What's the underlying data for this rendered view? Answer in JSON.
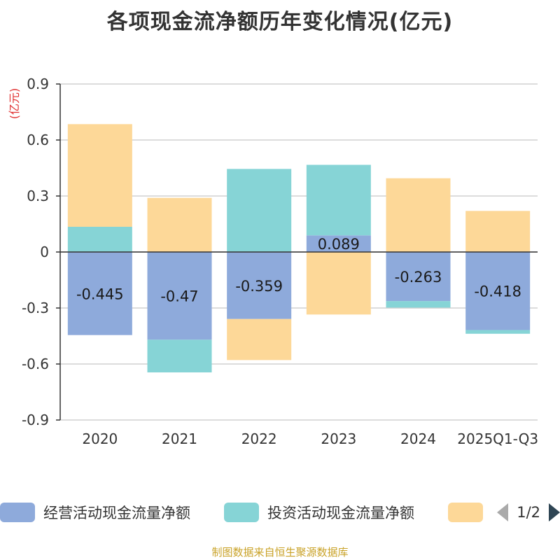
{
  "chart_data": {
    "type": "bar",
    "stacked": true,
    "title": "各项现金流净额历年变化情况(亿元)",
    "ylabel": "(亿元)",
    "xlabel": "",
    "categories": [
      "2020",
      "2021",
      "2022",
      "2023",
      "2024",
      "2025Q1-Q3"
    ],
    "ylim": [
      -0.9,
      0.9
    ],
    "yticks": [
      0.9,
      0.6,
      0.3,
      0,
      -0.3,
      -0.6,
      -0.9
    ],
    "ytick_labels": [
      "0.9",
      "0.6",
      "0.3",
      "0",
      "-0.3",
      "-0.6",
      "-0.9"
    ],
    "series": [
      {
        "name": "经营活动现金流量净额",
        "color": "#8eaadb",
        "values": [
          -0.445,
          -0.47,
          -0.359,
          0.089,
          -0.263,
          -0.418
        ],
        "labels": [
          "-0.445",
          "-0.47",
          "-0.359",
          "0.089",
          "-0.263",
          "-0.418"
        ]
      },
      {
        "name": "投资活动现金流量净额",
        "color": "#86d4d6",
        "values": [
          0.135,
          -0.175,
          0.445,
          0.378,
          -0.035,
          -0.02
        ]
      },
      {
        "name": "",
        "color": "#fdd898",
        "values": [
          0.55,
          0.29,
          -0.22,
          -0.335,
          0.395,
          0.22
        ]
      }
    ],
    "legend_position": "bottom"
  },
  "legend": {
    "page_text": "1/2"
  },
  "source_note": "制图数据来自恒生聚源数据库"
}
